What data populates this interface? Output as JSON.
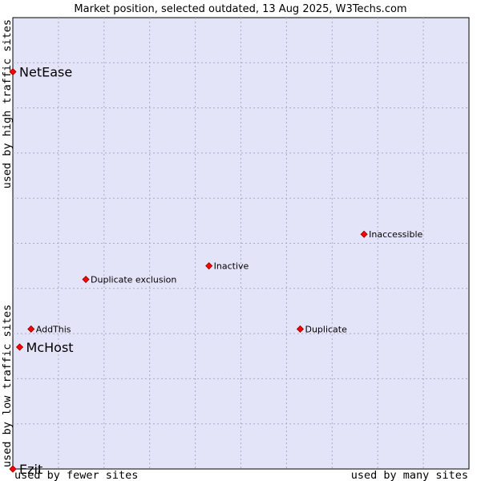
{
  "chart_data": {
    "type": "scatter",
    "title": "Market position, selected outdated, 13 Aug 2025, W3Techs.com",
    "xlabel_left": "used by fewer sites",
    "xlabel_right": "used by many sites",
    "ylabel_bottom": "used by low traffic sites",
    "ylabel_top": "used by high traffic sites",
    "xlim": [
      0,
      10
    ],
    "ylim": [
      0,
      10
    ],
    "grid": true,
    "colors": {
      "plot_background": "#e3e4f8",
      "grid": "#a9abc4",
      "marker": "#ff0000",
      "marker_edge": "#880000"
    },
    "points": [
      {
        "name": "NetEase",
        "x": 0.0,
        "y": 8.8,
        "size": "large"
      },
      {
        "name": "Inaccessible",
        "x": 7.7,
        "y": 5.2,
        "size": "small"
      },
      {
        "name": "Inactive",
        "x": 4.3,
        "y": 4.5,
        "size": "small"
      },
      {
        "name": "Duplicate exclusion",
        "x": 1.6,
        "y": 4.2,
        "size": "small"
      },
      {
        "name": "AddThis",
        "x": 0.4,
        "y": 3.1,
        "size": "small"
      },
      {
        "name": "Duplicate",
        "x": 6.3,
        "y": 3.1,
        "size": "small"
      },
      {
        "name": "McHost",
        "x": 0.15,
        "y": 2.7,
        "size": "large"
      },
      {
        "name": "Ezit",
        "x": 0.0,
        "y": 0.0,
        "size": "large"
      }
    ]
  }
}
